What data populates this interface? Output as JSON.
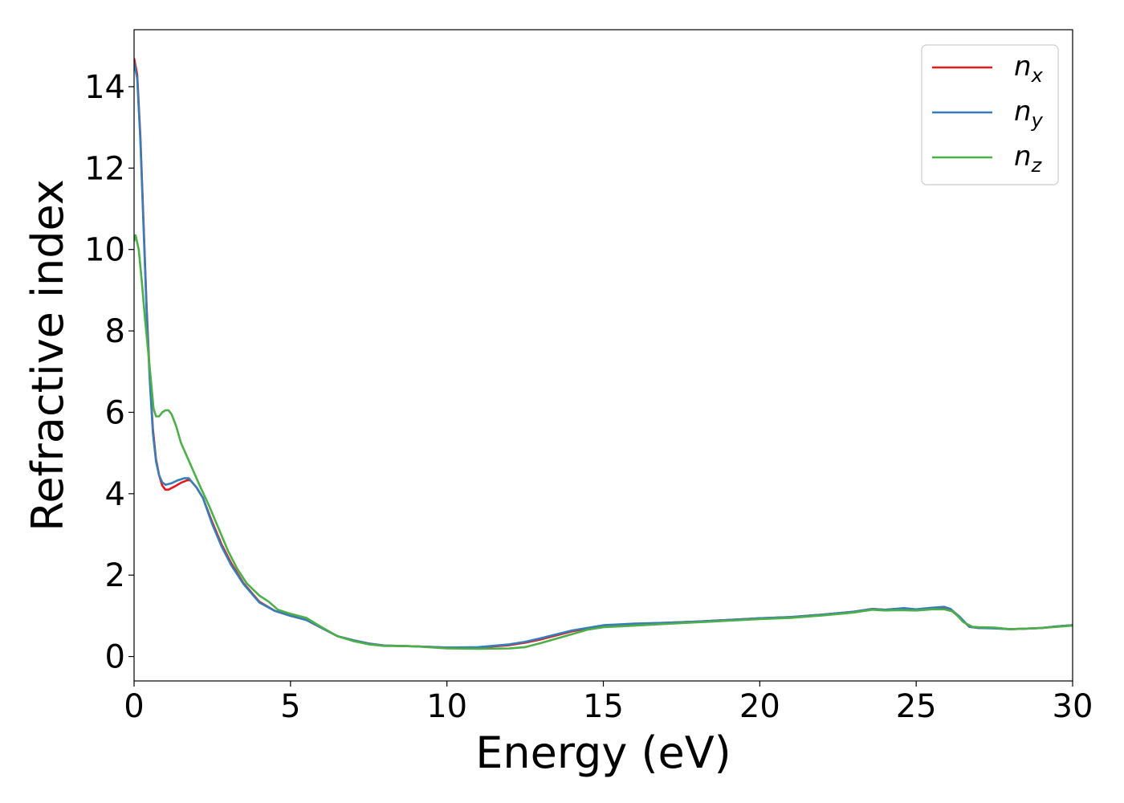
{
  "chart_data": {
    "type": "line",
    "xlabel": "Energy (eV)",
    "ylabel": "Refractive index",
    "xlim": [
      0,
      30
    ],
    "ylim": [
      -0.6,
      15.4
    ],
    "xticks": [
      0,
      5,
      10,
      15,
      20,
      25,
      30
    ],
    "yticks": [
      0,
      2,
      4,
      6,
      8,
      10,
      12,
      14
    ],
    "grid": false,
    "legend_position": "top-right",
    "series": [
      {
        "name": "n_x",
        "label_base": "n",
        "label_sub": "x",
        "color": "#e41a1c",
        "points": [
          [
            0,
            14.7
          ],
          [
            0.1,
            14.3
          ],
          [
            0.2,
            12.8
          ],
          [
            0.3,
            10.7
          ],
          [
            0.4,
            8.6
          ],
          [
            0.5,
            6.9
          ],
          [
            0.6,
            5.6
          ],
          [
            0.7,
            4.85
          ],
          [
            0.8,
            4.45
          ],
          [
            0.9,
            4.2
          ],
          [
            1.0,
            4.1
          ],
          [
            1.1,
            4.1
          ],
          [
            1.3,
            4.18
          ],
          [
            1.5,
            4.27
          ],
          [
            1.7,
            4.33
          ],
          [
            1.8,
            4.33
          ],
          [
            2.0,
            4.15
          ],
          [
            2.2,
            3.9
          ],
          [
            2.5,
            3.3
          ],
          [
            2.8,
            2.75
          ],
          [
            3.1,
            2.3
          ],
          [
            3.5,
            1.8
          ],
          [
            4.0,
            1.35
          ],
          [
            4.5,
            1.12
          ],
          [
            5.0,
            1.0
          ],
          [
            5.5,
            0.9
          ],
          [
            6.0,
            0.7
          ],
          [
            6.5,
            0.5
          ],
          [
            7.0,
            0.4
          ],
          [
            7.5,
            0.32
          ],
          [
            8.0,
            0.27
          ],
          [
            9.0,
            0.25
          ],
          [
            10.0,
            0.22
          ],
          [
            11.0,
            0.22
          ],
          [
            12.0,
            0.28
          ],
          [
            12.5,
            0.34
          ],
          [
            13.0,
            0.42
          ],
          [
            14.0,
            0.62
          ],
          [
            15.0,
            0.76
          ],
          [
            16.0,
            0.8
          ],
          [
            17.0,
            0.83
          ],
          [
            18.0,
            0.86
          ],
          [
            19.0,
            0.9
          ],
          [
            20.0,
            0.94
          ],
          [
            21.0,
            0.97
          ],
          [
            22.0,
            1.03
          ],
          [
            23.0,
            1.1
          ],
          [
            23.6,
            1.17
          ],
          [
            24.0,
            1.15
          ],
          [
            24.6,
            1.18
          ],
          [
            25.0,
            1.15
          ],
          [
            25.5,
            1.19
          ],
          [
            25.9,
            1.2
          ],
          [
            26.1,
            1.15
          ],
          [
            26.4,
            0.95
          ],
          [
            26.7,
            0.73
          ],
          [
            27.0,
            0.7
          ],
          [
            27.5,
            0.7
          ],
          [
            28.0,
            0.67
          ],
          [
            29.0,
            0.7
          ],
          [
            29.5,
            0.74
          ],
          [
            30.0,
            0.77
          ]
        ]
      },
      {
        "name": "n_y",
        "label_base": "n",
        "label_sub": "y",
        "color": "#377eb8",
        "points": [
          [
            0,
            14.6
          ],
          [
            0.1,
            14.2
          ],
          [
            0.2,
            12.7
          ],
          [
            0.3,
            10.6
          ],
          [
            0.4,
            8.5
          ],
          [
            0.5,
            6.8
          ],
          [
            0.6,
            5.5
          ],
          [
            0.7,
            4.8
          ],
          [
            0.8,
            4.45
          ],
          [
            0.9,
            4.28
          ],
          [
            1.0,
            4.22
          ],
          [
            1.2,
            4.26
          ],
          [
            1.4,
            4.33
          ],
          [
            1.6,
            4.38
          ],
          [
            1.75,
            4.38
          ],
          [
            2.0,
            4.15
          ],
          [
            2.2,
            3.9
          ],
          [
            2.5,
            3.25
          ],
          [
            2.8,
            2.7
          ],
          [
            3.1,
            2.25
          ],
          [
            3.5,
            1.78
          ],
          [
            4.0,
            1.33
          ],
          [
            4.5,
            1.12
          ],
          [
            5.0,
            1.0
          ],
          [
            5.5,
            0.9
          ],
          [
            6.0,
            0.7
          ],
          [
            6.5,
            0.5
          ],
          [
            7.0,
            0.4
          ],
          [
            7.5,
            0.32
          ],
          [
            8.0,
            0.27
          ],
          [
            9.0,
            0.25
          ],
          [
            10.0,
            0.22
          ],
          [
            11.0,
            0.23
          ],
          [
            12.0,
            0.3
          ],
          [
            12.5,
            0.36
          ],
          [
            13.0,
            0.45
          ],
          [
            14.0,
            0.64
          ],
          [
            15.0,
            0.77
          ],
          [
            16.0,
            0.81
          ],
          [
            17.0,
            0.83
          ],
          [
            18.0,
            0.86
          ],
          [
            19.0,
            0.9
          ],
          [
            20.0,
            0.94
          ],
          [
            21.0,
            0.97
          ],
          [
            22.0,
            1.03
          ],
          [
            23.0,
            1.1
          ],
          [
            23.6,
            1.17
          ],
          [
            24.0,
            1.15
          ],
          [
            24.6,
            1.19
          ],
          [
            25.0,
            1.16
          ],
          [
            25.5,
            1.2
          ],
          [
            25.9,
            1.22
          ],
          [
            26.1,
            1.17
          ],
          [
            26.4,
            0.97
          ],
          [
            26.7,
            0.73
          ],
          [
            27.0,
            0.7
          ],
          [
            27.5,
            0.69
          ],
          [
            28.0,
            0.67
          ],
          [
            29.0,
            0.7
          ],
          [
            29.5,
            0.74
          ],
          [
            30.0,
            0.77
          ]
        ]
      },
      {
        "name": "n_z",
        "label_base": "n",
        "label_sub": "z",
        "color": "#4daf4a",
        "points": [
          [
            0,
            10.2
          ],
          [
            0.05,
            10.35
          ],
          [
            0.15,
            10.0
          ],
          [
            0.25,
            9.2
          ],
          [
            0.35,
            8.3
          ],
          [
            0.45,
            7.5
          ],
          [
            0.55,
            6.7
          ],
          [
            0.62,
            6.1
          ],
          [
            0.7,
            5.9
          ],
          [
            0.8,
            5.9
          ],
          [
            0.9,
            6.0
          ],
          [
            1.0,
            6.05
          ],
          [
            1.1,
            6.05
          ],
          [
            1.2,
            5.95
          ],
          [
            1.35,
            5.65
          ],
          [
            1.5,
            5.25
          ],
          [
            1.7,
            4.9
          ],
          [
            1.9,
            4.55
          ],
          [
            2.1,
            4.2
          ],
          [
            2.4,
            3.7
          ],
          [
            2.7,
            3.15
          ],
          [
            3.0,
            2.6
          ],
          [
            3.3,
            2.15
          ],
          [
            3.6,
            1.8
          ],
          [
            4.0,
            1.5
          ],
          [
            4.3,
            1.35
          ],
          [
            4.6,
            1.15
          ],
          [
            5.0,
            1.05
          ],
          [
            5.5,
            0.95
          ],
          [
            6.0,
            0.72
          ],
          [
            6.5,
            0.5
          ],
          [
            7.0,
            0.38
          ],
          [
            7.5,
            0.3
          ],
          [
            8.0,
            0.26
          ],
          [
            8.5,
            0.26
          ],
          [
            9.0,
            0.25
          ],
          [
            10.0,
            0.2
          ],
          [
            11.0,
            0.19
          ],
          [
            12.0,
            0.2
          ],
          [
            12.5,
            0.23
          ],
          [
            13.0,
            0.33
          ],
          [
            14.0,
            0.55
          ],
          [
            14.5,
            0.66
          ],
          [
            15.0,
            0.72
          ],
          [
            16.0,
            0.76
          ],
          [
            17.0,
            0.8
          ],
          [
            18.0,
            0.84
          ],
          [
            19.0,
            0.88
          ],
          [
            20.0,
            0.92
          ],
          [
            21.0,
            0.95
          ],
          [
            22.0,
            1.01
          ],
          [
            23.0,
            1.08
          ],
          [
            23.6,
            1.15
          ],
          [
            24.0,
            1.13
          ],
          [
            24.5,
            1.14
          ],
          [
            25.0,
            1.13
          ],
          [
            25.5,
            1.16
          ],
          [
            25.9,
            1.16
          ],
          [
            26.2,
            1.1
          ],
          [
            26.5,
            0.85
          ],
          [
            26.8,
            0.73
          ],
          [
            27.0,
            0.72
          ],
          [
            27.5,
            0.71
          ],
          [
            28.0,
            0.67
          ],
          [
            29.0,
            0.7
          ],
          [
            29.5,
            0.73
          ],
          [
            30.0,
            0.76
          ]
        ]
      }
    ]
  }
}
